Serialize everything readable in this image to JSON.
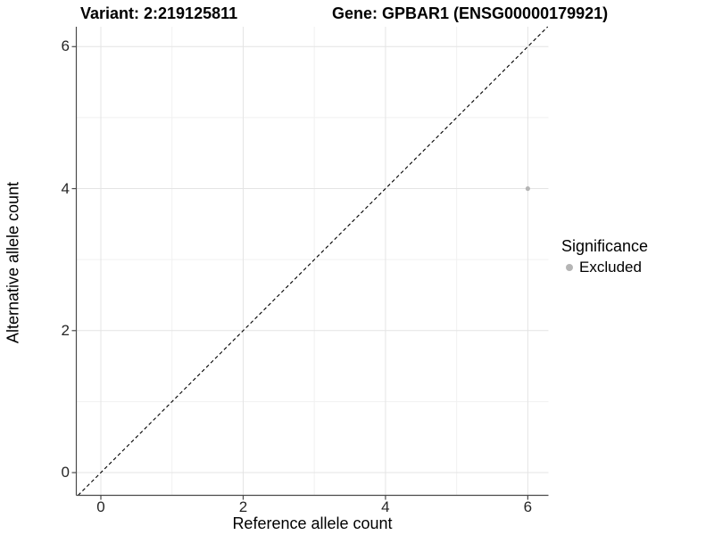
{
  "chart_data": {
    "type": "scatter",
    "titles": {
      "variant": "Variant: 2:219125811",
      "gene": "Gene: GPBAR1 (ENSG00000179921)"
    },
    "xlabel": "Reference allele count",
    "ylabel": "Alternative allele count",
    "x_ticks": [
      0,
      2,
      4,
      6
    ],
    "y_ticks": [
      0,
      2,
      4,
      6
    ],
    "x_minor_gridlines": [
      1,
      3,
      5
    ],
    "y_minor_gridlines": [
      1,
      3,
      5
    ],
    "xlim": [
      -0.345,
      6.29
    ],
    "ylim": [
      -0.32,
      6.28
    ],
    "reference_line": {
      "type": "identity",
      "style": "dashed",
      "color": "#000000"
    },
    "points": [
      {
        "x": 6,
        "y": 4,
        "significance": "Excluded"
      }
    ],
    "legend": {
      "title": "Significance",
      "position": "right",
      "items": [
        {
          "label": "Excluded",
          "color": "#b5b5b5"
        }
      ]
    },
    "colors": {
      "point": "#b5b5b5",
      "grid_major": "#e4e4e4",
      "grid_minor": "#f1f1f1",
      "axis": "#4a4a4a",
      "tick_text": "#262626",
      "background": "#ffffff"
    }
  }
}
